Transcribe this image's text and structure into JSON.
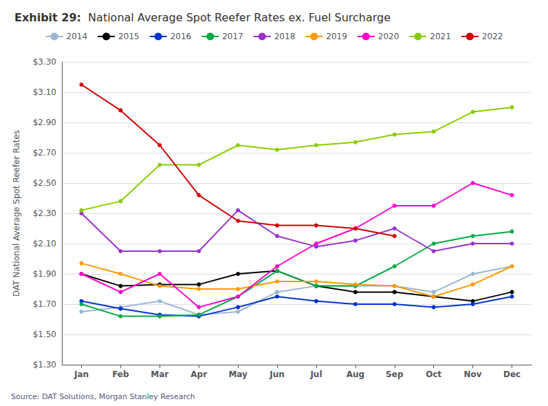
{
  "chart_data": {
    "type": "line",
    "title": "Exhibit 29:",
    "subtitle": "National Average Spot Reefer Rates ex. Fuel Surcharge",
    "ylabel": "DAT National Average Spot Reefer Rates",
    "annotations": [
      "Source: DAT Solutions, Morgan Stanley Research"
    ],
    "categories": [
      "Jan",
      "Feb",
      "Mar",
      "Apr",
      "May",
      "Jun",
      "Jul",
      "Aug",
      "Sep",
      "Oct",
      "Nov",
      "Dec"
    ],
    "series": [
      {
        "name": "2014",
        "color": "#9bb7d4",
        "values": [
          1.65,
          1.68,
          1.72,
          1.63,
          1.65,
          1.78,
          1.82,
          1.82,
          1.82,
          1.78,
          1.9,
          1.95
        ]
      },
      {
        "name": "2015",
        "color": "#000000",
        "values": [
          1.9,
          1.82,
          1.83,
          1.83,
          1.9,
          1.92,
          1.82,
          1.78,
          1.78,
          1.75,
          1.72,
          1.78
        ]
      },
      {
        "name": "2016",
        "color": "#0033cc",
        "values": [
          1.72,
          1.67,
          1.63,
          1.62,
          1.68,
          1.75,
          1.72,
          1.7,
          1.7,
          1.68,
          1.7,
          1.75
        ]
      },
      {
        "name": "2017",
        "color": "#00aa44",
        "values": [
          1.7,
          1.62,
          1.62,
          1.63,
          1.75,
          1.92,
          1.82,
          1.82,
          1.95,
          2.1,
          2.15,
          2.18
        ]
      },
      {
        "name": "2018",
        "color": "#9933cc",
        "values": [
          2.3,
          2.05,
          2.05,
          2.05,
          2.32,
          2.15,
          2.08,
          2.12,
          2.2,
          2.05,
          2.1,
          2.1
        ]
      },
      {
        "name": "2019",
        "color": "#ff9900",
        "values": [
          1.97,
          1.9,
          1.82,
          1.8,
          1.8,
          1.85,
          1.85,
          1.83,
          1.82,
          1.75,
          1.83,
          1.95
        ]
      },
      {
        "name": "2020",
        "color": "#ff00cc",
        "values": [
          1.9,
          1.78,
          1.9,
          1.68,
          1.75,
          1.95,
          2.1,
          2.2,
          2.35,
          2.35,
          2.5,
          2.42
        ]
      },
      {
        "name": "2021",
        "color": "#88cc00",
        "values": [
          2.32,
          2.38,
          2.62,
          2.62,
          2.75,
          2.72,
          2.75,
          2.77,
          2.82,
          2.84,
          2.97,
          3.0
        ]
      },
      {
        "name": "2022",
        "color": "#cc0000",
        "values": [
          3.15,
          2.98,
          2.75,
          2.42,
          2.25,
          2.22,
          2.22,
          2.2,
          2.15,
          null,
          null,
          null
        ]
      }
    ],
    "ylim": [
      1.3,
      3.3
    ],
    "yticks": [
      {
        "value": 1.3,
        "label": "$1.30"
      },
      {
        "value": 1.5,
        "label": "$1.50"
      },
      {
        "value": 1.7,
        "label": "$1.70"
      },
      {
        "value": 1.9,
        "label": "$1.90"
      },
      {
        "value": 2.1,
        "label": "$2.10"
      },
      {
        "value": 2.3,
        "label": "$2.30"
      },
      {
        "value": 2.5,
        "label": "$2.50"
      },
      {
        "value": 2.7,
        "label": "$2.70"
      },
      {
        "value": 2.9,
        "label": "$2.90"
      },
      {
        "value": 3.1,
        "label": "$3.10"
      },
      {
        "value": 3.3,
        "label": "$3.30"
      }
    ],
    "grid": true,
    "legend": "top",
    "marker": "circle"
  }
}
